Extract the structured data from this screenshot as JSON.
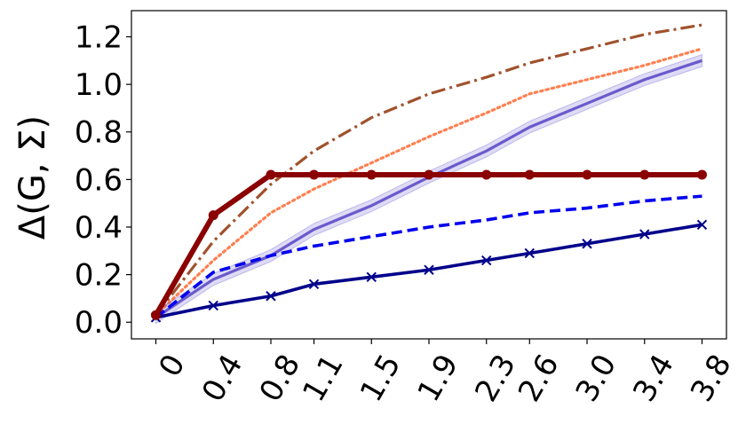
{
  "chart_data": {
    "type": "line",
    "title": "",
    "xlabel": "",
    "ylabel": "Δ(G, Σ)",
    "categories": [
      "0",
      "0.4",
      "0.8",
      "1.1",
      "1.5",
      "1.9",
      "2.3",
      "2.6",
      "3.0",
      "3.4",
      "3.8"
    ],
    "x": [
      0,
      0.4,
      0.8,
      1.1,
      1.5,
      1.9,
      2.3,
      2.6,
      3.0,
      3.4,
      3.8
    ],
    "xlim": [
      -0.17,
      3.97
    ],
    "ylim": [
      -0.07,
      1.31
    ],
    "yticks": [
      0.0,
      0.2,
      0.4,
      0.6,
      0.8,
      1.0,
      1.2
    ],
    "ytick_labels": [
      "0.0",
      "0.2",
      "0.4",
      "0.6",
      "0.8",
      "1.0",
      "1.2"
    ],
    "grid": false,
    "series": [
      {
        "color": "#a0522d",
        "style": "dashdot",
        "values": [
          0.03,
          0.34,
          0.58,
          0.72,
          0.86,
          0.96,
          1.03,
          1.09,
          1.15,
          1.21,
          1.25
        ]
      },
      {
        "color": "#ff7f50",
        "style": "dotted",
        "values": [
          0.03,
          0.26,
          0.46,
          0.56,
          0.67,
          0.78,
          0.88,
          0.96,
          1.02,
          1.08,
          1.15
        ]
      },
      {
        "color": "#6a5acd",
        "style": "solid-band",
        "values": [
          0.02,
          0.18,
          0.28,
          0.39,
          0.49,
          0.61,
          0.72,
          0.82,
          0.92,
          1.02,
          1.1
        ],
        "band": 0.025
      },
      {
        "color": "#0000ee",
        "style": "dashed",
        "values": [
          0.02,
          0.21,
          0.28,
          0.32,
          0.36,
          0.4,
          0.43,
          0.46,
          0.48,
          0.51,
          0.53
        ]
      },
      {
        "color": "#00008b",
        "style": "solid-x",
        "values": [
          0.02,
          0.07,
          0.11,
          0.16,
          0.19,
          0.22,
          0.26,
          0.29,
          0.33,
          0.37,
          0.41
        ]
      },
      {
        "color": "#8b0000",
        "style": "solid-dot",
        "values": [
          0.03,
          0.45,
          0.62,
          0.62,
          0.62,
          0.62,
          0.62,
          0.62,
          0.62,
          0.62,
          0.62
        ]
      }
    ]
  }
}
